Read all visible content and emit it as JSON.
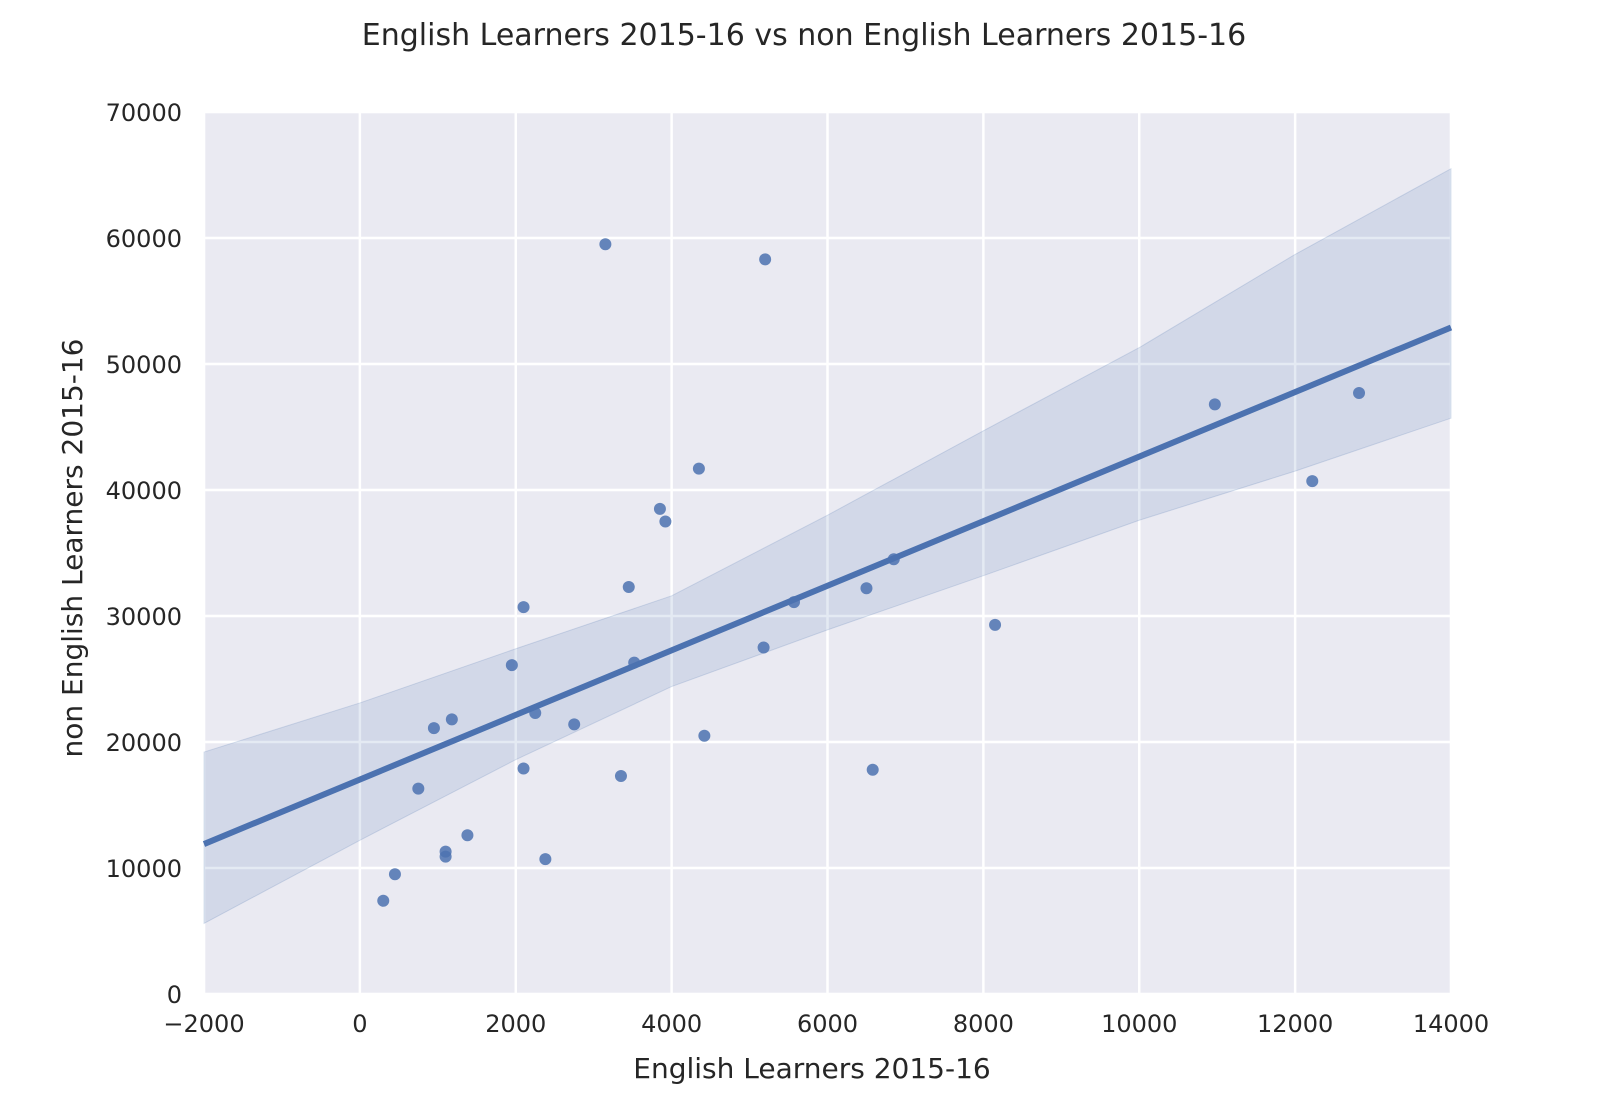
{
  "chart_data": {
    "type": "scatter",
    "title": "English Learners 2015-16 vs non English Learners 2015-16",
    "xlabel": "English Learners 2015-16",
    "ylabel": "non English Learners 2015-16",
    "xlim": [
      -2000,
      14000
    ],
    "ylim": [
      0,
      70000
    ],
    "xticks": [
      -2000,
      0,
      2000,
      4000,
      6000,
      8000,
      10000,
      12000,
      14000
    ],
    "xtick_labels": [
      "−2000",
      "0",
      "2000",
      "4000",
      "6000",
      "8000",
      "10000",
      "12000",
      "14000"
    ],
    "yticks": [
      0,
      10000,
      20000,
      30000,
      40000,
      50000,
      60000,
      70000
    ],
    "ytick_labels": [
      "0",
      "10000",
      "20000",
      "30000",
      "40000",
      "50000",
      "60000",
      "70000"
    ],
    "grid": true,
    "background_color": "#EAEAF2",
    "point_color": "#4C72B0",
    "points": [
      {
        "x": 300,
        "y": 7400
      },
      {
        "x": 450,
        "y": 9500
      },
      {
        "x": 750,
        "y": 16300
      },
      {
        "x": 950,
        "y": 21100
      },
      {
        "x": 1100,
        "y": 11300
      },
      {
        "x": 1100,
        "y": 10900
      },
      {
        "x": 1180,
        "y": 21800
      },
      {
        "x": 1380,
        "y": 12600
      },
      {
        "x": 1950,
        "y": 26100
      },
      {
        "x": 2100,
        "y": 30700
      },
      {
        "x": 2100,
        "y": 17900
      },
      {
        "x": 2250,
        "y": 22300
      },
      {
        "x": 2380,
        "y": 10700
      },
      {
        "x": 2750,
        "y": 21400
      },
      {
        "x": 3150,
        "y": 59500
      },
      {
        "x": 3350,
        "y": 17300
      },
      {
        "x": 3450,
        "y": 32300
      },
      {
        "x": 3520,
        "y": 26300
      },
      {
        "x": 3850,
        "y": 38500
      },
      {
        "x": 3920,
        "y": 37500
      },
      {
        "x": 4350,
        "y": 41700
      },
      {
        "x": 4420,
        "y": 20500
      },
      {
        "x": 5180,
        "y": 27500
      },
      {
        "x": 5200,
        "y": 58300
      },
      {
        "x": 5570,
        "y": 31100
      },
      {
        "x": 6500,
        "y": 32200
      },
      {
        "x": 6580,
        "y": 17800
      },
      {
        "x": 6850,
        "y": 34500
      },
      {
        "x": 8150,
        "y": 29300
      },
      {
        "x": 10970,
        "y": 46800
      },
      {
        "x": 12220,
        "y": 40700
      },
      {
        "x": 12820,
        "y": 47700
      }
    ],
    "regression_line": {
      "x": [
        -2000,
        14000
      ],
      "y": [
        11900,
        52900
      ]
    },
    "confidence_band": {
      "x": [
        -2000,
        0,
        2000,
        4000,
        6000,
        8000,
        10000,
        12000,
        14000
      ],
      "upper": [
        19200,
        23100,
        27400,
        31600,
        38000,
        44700,
        51300,
        58700,
        65500
      ],
      "lower": [
        5600,
        12200,
        18600,
        24400,
        28900,
        33200,
        37600,
        41500,
        45700
      ]
    }
  }
}
